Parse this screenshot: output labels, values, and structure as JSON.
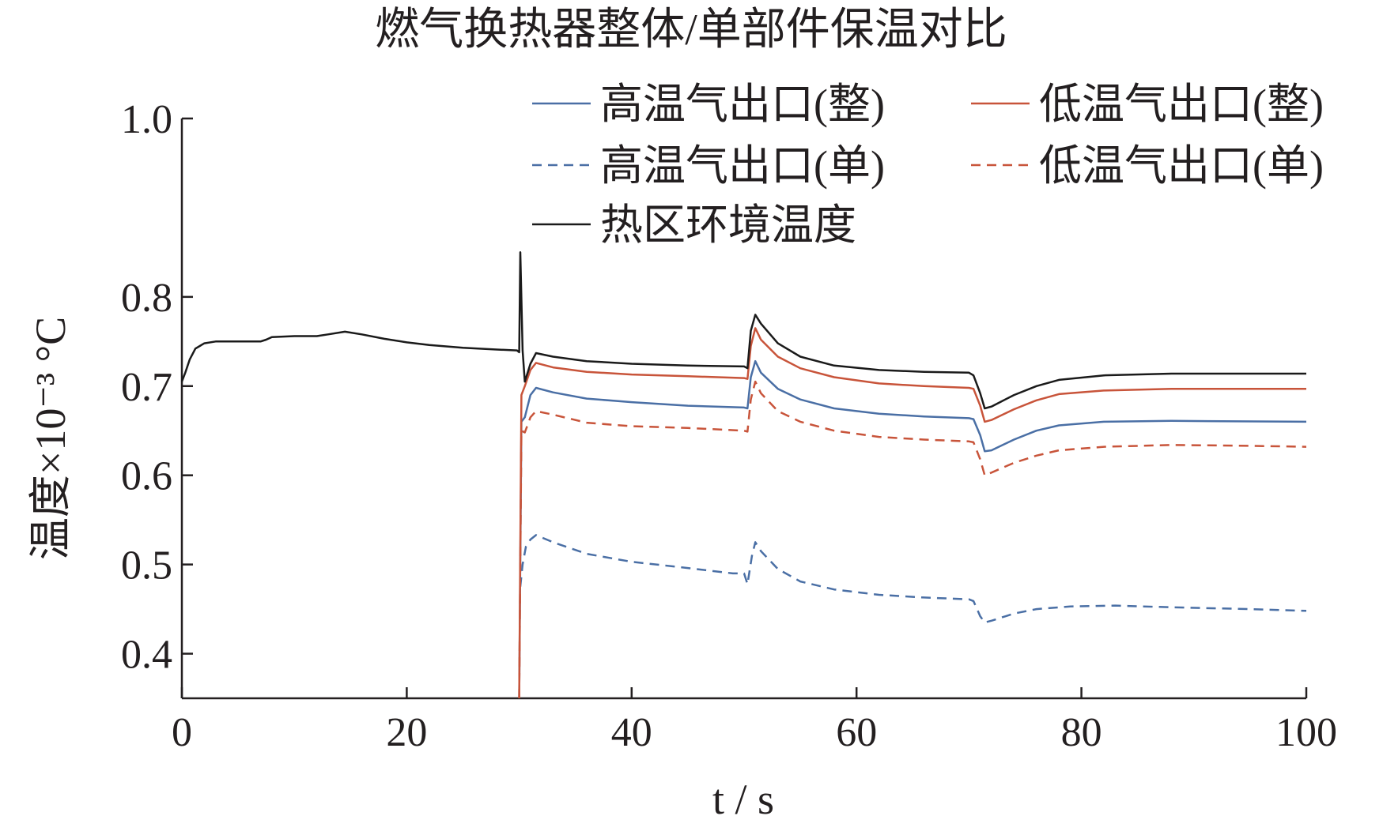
{
  "chart_data": {
    "type": "line",
    "title": "燃气换热器整体/单部件保温对比",
    "xlabel": "t / s",
    "ylabel": "温度×10⁻³ °C",
    "xlim": [
      0,
      100
    ],
    "ylim": [
      0.35,
      1.0
    ],
    "xticks": [
      "0",
      "20",
      "40",
      "60",
      "80",
      "100"
    ],
    "yticks": [
      "0.4",
      "0.5",
      "0.6",
      "0.7",
      "0.8",
      "1.0"
    ],
    "grid": false,
    "legend_position": "top-right",
    "series": [
      {
        "name": "高温气出口(整)",
        "color": "#4a6fa5",
        "dash": "solid",
        "points": [
          [
            30,
            0.35
          ],
          [
            30.2,
            0.66
          ],
          [
            30.5,
            0.665
          ],
          [
            31,
            0.69
          ],
          [
            31.5,
            0.698
          ],
          [
            33,
            0.693
          ],
          [
            36,
            0.686
          ],
          [
            40,
            0.682
          ],
          [
            45,
            0.678
          ],
          [
            50,
            0.676
          ],
          [
            50.3,
            0.675
          ],
          [
            50.6,
            0.71
          ],
          [
            51,
            0.728
          ],
          [
            51.5,
            0.715
          ],
          [
            53,
            0.697
          ],
          [
            55,
            0.685
          ],
          [
            58,
            0.675
          ],
          [
            62,
            0.669
          ],
          [
            66,
            0.666
          ],
          [
            70,
            0.664
          ],
          [
            70.4,
            0.663
          ],
          [
            71,
            0.645
          ],
          [
            71.4,
            0.627
          ],
          [
            72,
            0.628
          ],
          [
            74,
            0.64
          ],
          [
            76,
            0.65
          ],
          [
            78,
            0.656
          ],
          [
            82,
            0.66
          ],
          [
            88,
            0.661
          ],
          [
            100,
            0.66
          ]
        ]
      },
      {
        "name": "低温气出口(整)",
        "color": "#c8543a",
        "dash": "solid",
        "points": [
          [
            30,
            0.35
          ],
          [
            30.2,
            0.69
          ],
          [
            30.5,
            0.7
          ],
          [
            31,
            0.718
          ],
          [
            31.5,
            0.726
          ],
          [
            33,
            0.721
          ],
          [
            36,
            0.716
          ],
          [
            40,
            0.713
          ],
          [
            45,
            0.711
          ],
          [
            50,
            0.709
          ],
          [
            50.3,
            0.708
          ],
          [
            50.6,
            0.745
          ],
          [
            51,
            0.765
          ],
          [
            51.5,
            0.752
          ],
          [
            53,
            0.733
          ],
          [
            55,
            0.72
          ],
          [
            58,
            0.71
          ],
          [
            62,
            0.703
          ],
          [
            66,
            0.7
          ],
          [
            70,
            0.698
          ],
          [
            70.4,
            0.697
          ],
          [
            71,
            0.678
          ],
          [
            71.4,
            0.66
          ],
          [
            72,
            0.662
          ],
          [
            74,
            0.674
          ],
          [
            76,
            0.684
          ],
          [
            78,
            0.691
          ],
          [
            82,
            0.695
          ],
          [
            88,
            0.697
          ],
          [
            100,
            0.697
          ]
        ]
      },
      {
        "name": "高温气出口(单)",
        "color": "#4a6fa5",
        "dash": "dashed",
        "points": [
          [
            30.1,
            0.475
          ],
          [
            30.3,
            0.5
          ],
          [
            30.6,
            0.52
          ],
          [
            31,
            0.528
          ],
          [
            31.5,
            0.533
          ],
          [
            33,
            0.525
          ],
          [
            36,
            0.512
          ],
          [
            40,
            0.503
          ],
          [
            45,
            0.496
          ],
          [
            49,
            0.49
          ],
          [
            50,
            0.49
          ],
          [
            50.3,
            0.478
          ],
          [
            50.7,
            0.51
          ],
          [
            51,
            0.525
          ],
          [
            51.5,
            0.515
          ],
          [
            53,
            0.495
          ],
          [
            55,
            0.481
          ],
          [
            58,
            0.472
          ],
          [
            62,
            0.466
          ],
          [
            66,
            0.463
          ],
          [
            70,
            0.461
          ],
          [
            70.4,
            0.459
          ],
          [
            71,
            0.442
          ],
          [
            71.4,
            0.435
          ],
          [
            72,
            0.437
          ],
          [
            74,
            0.445
          ],
          [
            76,
            0.45
          ],
          [
            79,
            0.453
          ],
          [
            83,
            0.454
          ],
          [
            88,
            0.452
          ],
          [
            95,
            0.45
          ],
          [
            100,
            0.448
          ]
        ]
      },
      {
        "name": "低温气出口(单)",
        "color": "#c8543a",
        "dash": "dashed",
        "points": [
          [
            30,
            0.35
          ],
          [
            30.2,
            0.65
          ],
          [
            30.5,
            0.648
          ],
          [
            31,
            0.665
          ],
          [
            31.5,
            0.672
          ],
          [
            33,
            0.668
          ],
          [
            36,
            0.659
          ],
          [
            40,
            0.655
          ],
          [
            45,
            0.653
          ],
          [
            50,
            0.65
          ],
          [
            50.3,
            0.649
          ],
          [
            50.6,
            0.685
          ],
          [
            51,
            0.705
          ],
          [
            51.5,
            0.692
          ],
          [
            53,
            0.672
          ],
          [
            55,
            0.66
          ],
          [
            58,
            0.65
          ],
          [
            62,
            0.643
          ],
          [
            66,
            0.64
          ],
          [
            70,
            0.638
          ],
          [
            70.4,
            0.637
          ],
          [
            71,
            0.618
          ],
          [
            71.4,
            0.6
          ],
          [
            72,
            0.603
          ],
          [
            74,
            0.614
          ],
          [
            76,
            0.622
          ],
          [
            78,
            0.628
          ],
          [
            82,
            0.632
          ],
          [
            88,
            0.634
          ],
          [
            95,
            0.633
          ],
          [
            100,
            0.632
          ]
        ]
      },
      {
        "name": "热区环境温度",
        "color": "#1a1a1a",
        "dash": "solid",
        "points": [
          [
            0,
            0.705
          ],
          [
            0.3,
            0.715
          ],
          [
            0.7,
            0.73
          ],
          [
            1.2,
            0.742
          ],
          [
            2,
            0.748
          ],
          [
            3,
            0.75
          ],
          [
            5,
            0.75
          ],
          [
            7,
            0.75
          ],
          [
            7.5,
            0.752
          ],
          [
            8,
            0.755
          ],
          [
            10,
            0.756
          ],
          [
            12,
            0.756
          ],
          [
            13,
            0.758
          ],
          [
            14.5,
            0.761
          ],
          [
            16,
            0.758
          ],
          [
            18,
            0.753
          ],
          [
            20,
            0.749
          ],
          [
            22,
            0.746
          ],
          [
            25,
            0.743
          ],
          [
            28,
            0.741
          ],
          [
            29.8,
            0.74
          ],
          [
            30,
            0.738
          ],
          [
            30.1,
            0.85
          ],
          [
            30.3,
            0.74
          ],
          [
            30.5,
            0.705
          ],
          [
            31,
            0.725
          ],
          [
            31.5,
            0.737
          ],
          [
            33,
            0.733
          ],
          [
            36,
            0.728
          ],
          [
            40,
            0.725
          ],
          [
            45,
            0.723
          ],
          [
            50,
            0.722
          ],
          [
            50.3,
            0.72
          ],
          [
            50.6,
            0.762
          ],
          [
            51,
            0.78
          ],
          [
            51.5,
            0.77
          ],
          [
            53,
            0.748
          ],
          [
            55,
            0.733
          ],
          [
            58,
            0.723
          ],
          [
            62,
            0.718
          ],
          [
            66,
            0.716
          ],
          [
            70,
            0.715
          ],
          [
            70.4,
            0.712
          ],
          [
            71,
            0.692
          ],
          [
            71.4,
            0.675
          ],
          [
            72,
            0.677
          ],
          [
            74,
            0.69
          ],
          [
            76,
            0.7
          ],
          [
            78,
            0.707
          ],
          [
            82,
            0.712
          ],
          [
            88,
            0.714
          ],
          [
            100,
            0.714
          ]
        ]
      }
    ]
  }
}
